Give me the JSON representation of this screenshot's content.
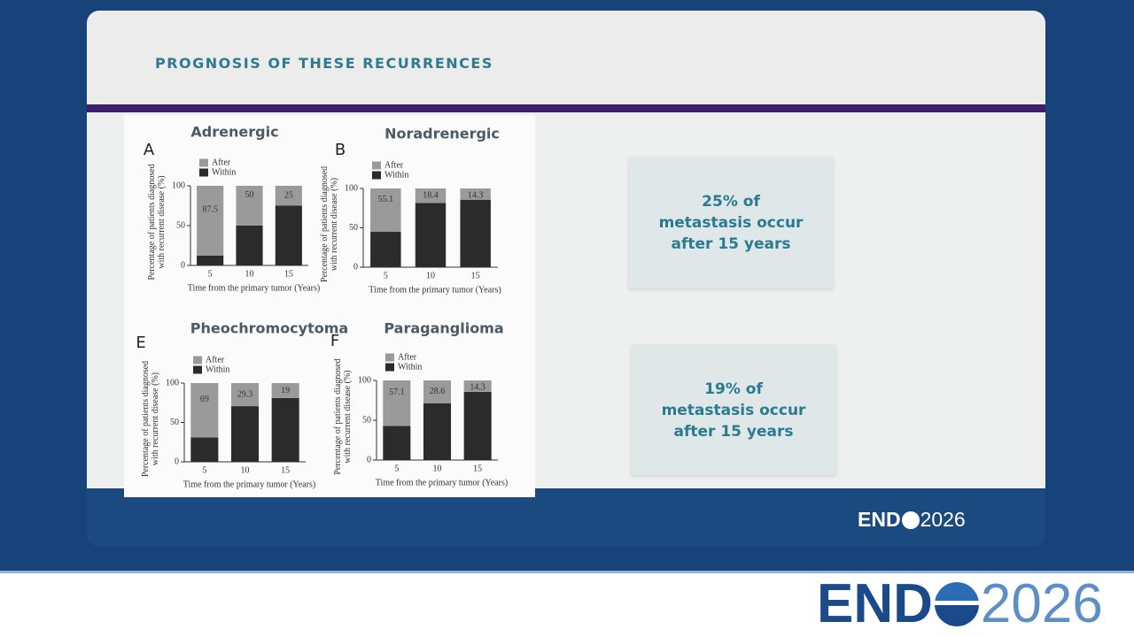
{
  "header": {
    "title": "PROGNOSIS OF THESE RECURRENCES"
  },
  "callouts": [
    "25% of metastasis occur after 15 years",
    "19% of metastasis occur after 15 years"
  ],
  "slide_logo": {
    "left": "END",
    "right": "2026"
  },
  "footer_logo": {
    "left": "END",
    "right": "2026"
  },
  "chart_data": [
    {
      "type": "stacked-bar",
      "panel": "A",
      "title": "Adrenergic",
      "y_label": "Percentage of patients diagnosed with recurrent disease (%)",
      "x_label": "Time from the primary tumor (Years)",
      "categories": [
        "5",
        "10",
        "15"
      ],
      "series": [
        {
          "name": "Within",
          "color": "#2b2b2b",
          "values": [
            12.5,
            50,
            75
          ]
        },
        {
          "name": "After",
          "color": "#9a9a9a",
          "values": [
            87.5,
            50,
            25
          ]
        }
      ],
      "ylim": [
        0,
        100
      ],
      "yticks": [
        0,
        50,
        100
      ]
    },
    {
      "type": "stacked-bar",
      "panel": "B",
      "title": "Noradrenergic",
      "y_label": "Percentage of patients diagnosed with recurrent disease (%)",
      "x_label": "Time from the primary tumor (Years)",
      "categories": [
        "5",
        "10",
        "15"
      ],
      "series": [
        {
          "name": "Within",
          "color": "#2b2b2b",
          "values": [
            44.9,
            81.6,
            85.7
          ]
        },
        {
          "name": "After",
          "color": "#9a9a9a",
          "values": [
            55.1,
            18.4,
            14.3
          ]
        }
      ],
      "ylim": [
        0,
        100
      ],
      "yticks": [
        0,
        50,
        100
      ]
    },
    {
      "type": "stacked-bar",
      "panel": "E",
      "title": "Pheochromocytoma",
      "y_label": "Percentage of patients diagnosed with recurrent disease (%)",
      "x_label": "Time from the primary tumor (Years)",
      "categories": [
        "5",
        "10",
        "15"
      ],
      "series": [
        {
          "name": "Within",
          "color": "#2b2b2b",
          "values": [
            31,
            70.7,
            81
          ]
        },
        {
          "name": "After",
          "color": "#9a9a9a",
          "values": [
            69,
            29.3,
            19
          ]
        }
      ],
      "ylim": [
        0,
        100
      ],
      "yticks": [
        0,
        50,
        100
      ]
    },
    {
      "type": "stacked-bar",
      "panel": "F",
      "title": "Paraganglioma",
      "y_label": "Percentage of patients diagnosed with recurrent disease (%)",
      "x_label": "Time from the primary tumor (Years)",
      "categories": [
        "5",
        "10",
        "15"
      ],
      "series": [
        {
          "name": "Within",
          "color": "#2b2b2b",
          "values": [
            42.9,
            71.4,
            85.7
          ]
        },
        {
          "name": "After",
          "color": "#9a9a9a",
          "values": [
            57.1,
            28.6,
            14.3
          ]
        }
      ],
      "ylim": [
        0,
        100
      ],
      "yticks": [
        0,
        50,
        100
      ]
    }
  ]
}
